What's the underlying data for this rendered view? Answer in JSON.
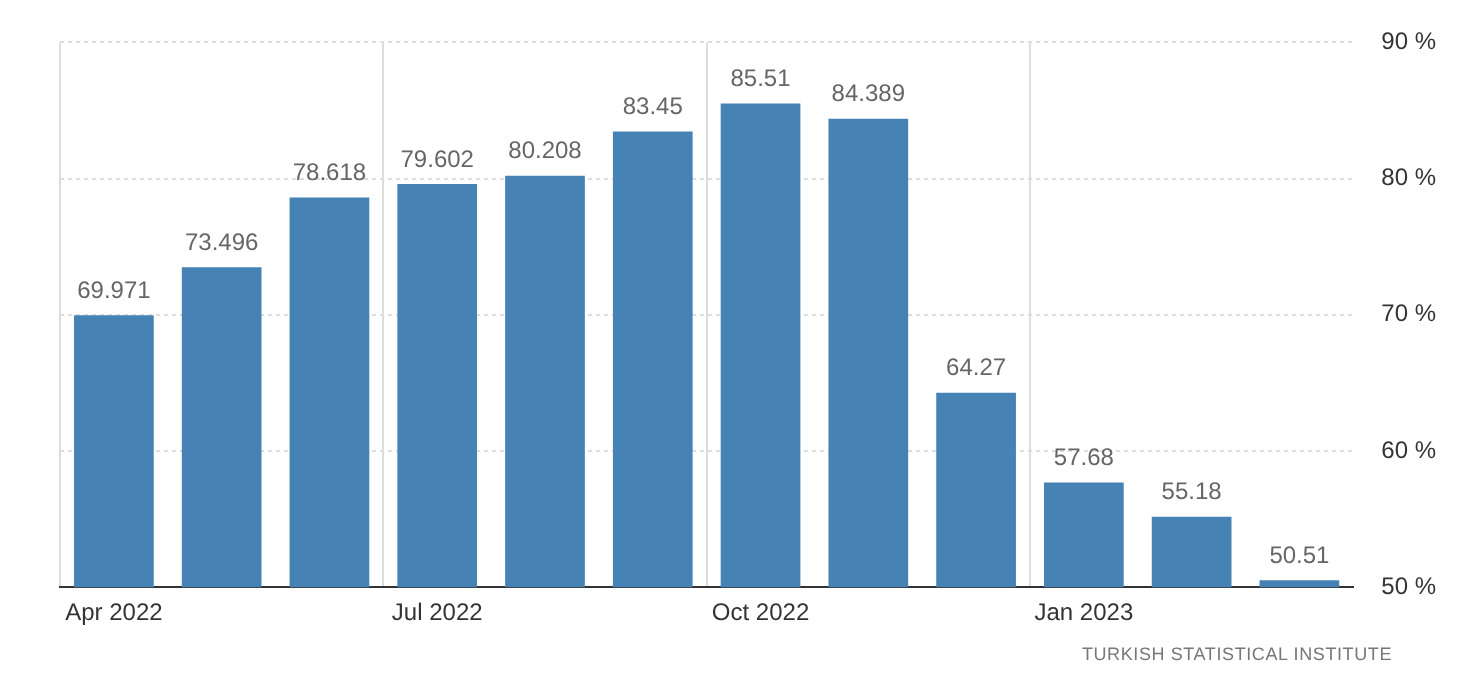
{
  "chart_data": {
    "type": "bar",
    "categories": [
      "Apr 2022",
      null,
      null,
      "Jul 2022",
      null,
      null,
      "Oct 2022",
      null,
      null,
      "Jan 2023",
      null,
      null
    ],
    "values": [
      69.971,
      73.496,
      78.618,
      79.602,
      80.208,
      83.45,
      85.51,
      84.389,
      64.27,
      57.68,
      55.18,
      50.51
    ],
    "color": "#4682b4",
    "ylim": [
      50,
      90
    ],
    "yticks": [
      {
        "value": 50,
        "label": "50 %"
      },
      {
        "value": 60,
        "label": "60 %"
      },
      {
        "value": 70,
        "label": "70 %"
      },
      {
        "value": 80,
        "label": "80 %"
      },
      {
        "value": 90,
        "label": "90 %"
      }
    ],
    "grid": true,
    "data_labels": true,
    "annotations": [
      "TURKISH STATISTICAL INSTITUTE"
    ]
  }
}
